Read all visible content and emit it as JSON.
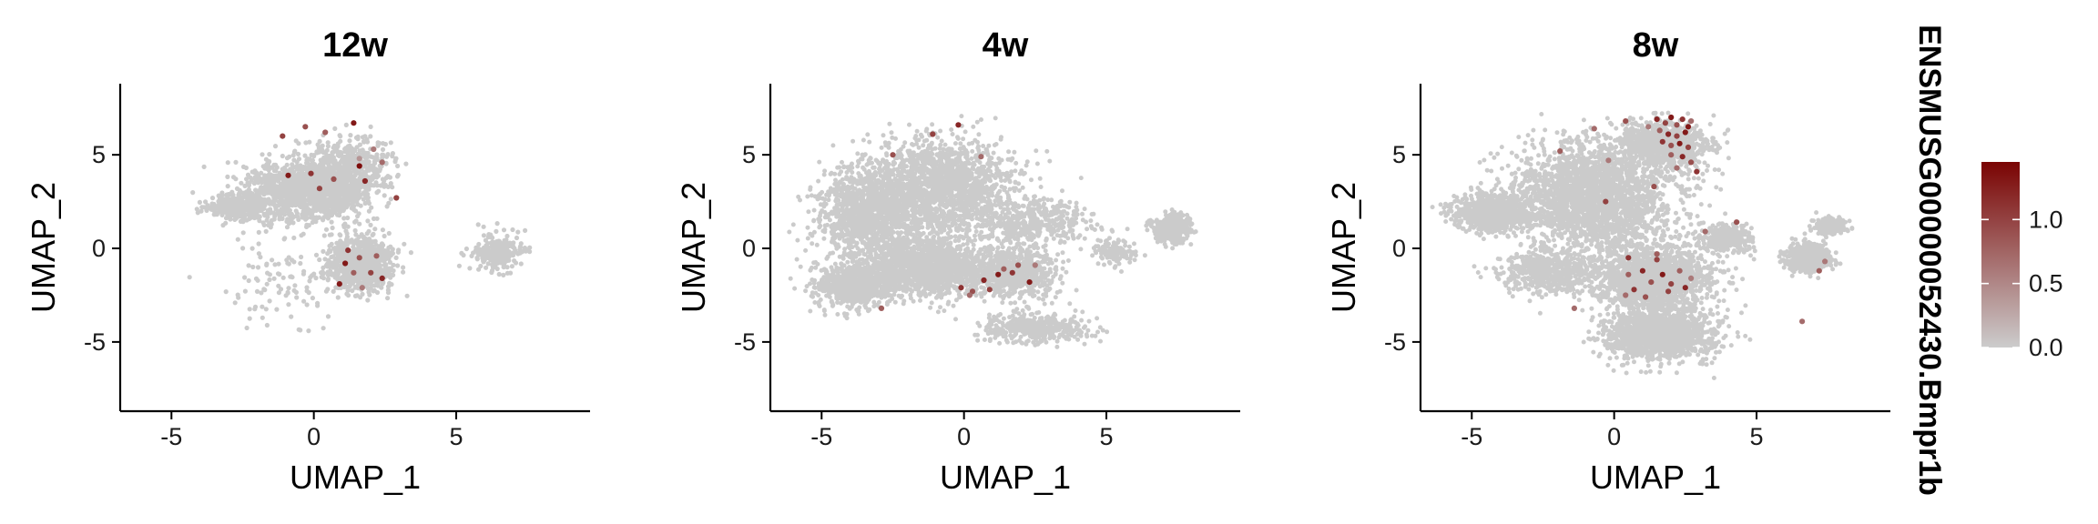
{
  "chart_data": {
    "type": "scatter",
    "panels": [
      {
        "title": "12w",
        "xlabel": "UMAP_1",
        "ylabel": "UMAP_2",
        "xlim": [
          -6.8,
          9.7
        ],
        "ylim": [
          -8.7,
          8.8
        ],
        "xticks": [
          -5,
          0,
          5
        ],
        "xticklabels": [
          "-5",
          "0",
          "5"
        ],
        "yticks": [
          -5,
          0,
          5
        ],
        "yticklabels": [
          "-5",
          "0",
          "5"
        ],
        "expressing_cells": [
          {
            "x": -1.1,
            "y": 6.0,
            "expr": 1.0
          },
          {
            "x": -0.3,
            "y": 6.5,
            "expr": 0.9
          },
          {
            "x": 0.4,
            "y": 6.2,
            "expr": 0.8
          },
          {
            "x": 1.4,
            "y": 6.7,
            "expr": 1.3
          },
          {
            "x": 2.1,
            "y": 5.3,
            "expr": 0.6
          },
          {
            "x": 1.6,
            "y": 4.8,
            "expr": 0.4
          },
          {
            "x": -0.9,
            "y": 3.9,
            "expr": 1.3
          },
          {
            "x": -0.1,
            "y": 4.0,
            "expr": 1.1
          },
          {
            "x": 0.7,
            "y": 3.7,
            "expr": 0.9
          },
          {
            "x": 1.6,
            "y": 4.4,
            "expr": 1.4
          },
          {
            "x": 2.4,
            "y": 4.6,
            "expr": 0.7
          },
          {
            "x": 0.2,
            "y": 3.2,
            "expr": 1.0
          },
          {
            "x": 1.8,
            "y": 3.6,
            "expr": 1.2
          },
          {
            "x": 2.9,
            "y": 2.7,
            "expr": 1.0
          },
          {
            "x": 1.2,
            "y": -0.1,
            "expr": 1.1
          },
          {
            "x": 1.6,
            "y": -0.5,
            "expr": 0.9
          },
          {
            "x": 1.1,
            "y": -0.8,
            "expr": 1.3
          },
          {
            "x": 2.2,
            "y": -0.4,
            "expr": 0.8
          },
          {
            "x": 2.0,
            "y": -1.3,
            "expr": 1.0
          },
          {
            "x": 1.4,
            "y": -1.3,
            "expr": 0.8
          },
          {
            "x": 2.4,
            "y": -1.6,
            "expr": 1.2
          },
          {
            "x": 0.9,
            "y": -1.9,
            "expr": 1.3
          },
          {
            "x": 1.7,
            "y": -2.1,
            "expr": 0.6
          }
        ]
      },
      {
        "title": "4w",
        "xlabel": "UMAP_1",
        "ylabel": "UMAP_2",
        "xlim": [
          -6.8,
          9.7
        ],
        "ylim": [
          -8.7,
          8.8
        ],
        "xticks": [
          -5,
          0,
          5
        ],
        "xticklabels": [
          "-5",
          "0",
          "5"
        ],
        "yticks": [
          -5,
          0,
          5
        ],
        "yticklabels": [
          "-5",
          "0",
          "5"
        ],
        "expressing_cells": [
          {
            "x": -1.1,
            "y": 6.1,
            "expr": 1.0
          },
          {
            "x": -0.2,
            "y": 6.6,
            "expr": 1.2
          },
          {
            "x": -2.5,
            "y": 5.0,
            "expr": 0.9
          },
          {
            "x": 0.6,
            "y": 4.9,
            "expr": 0.7
          },
          {
            "x": -2.9,
            "y": -3.2,
            "expr": 0.8
          },
          {
            "x": -0.1,
            "y": -2.1,
            "expr": 1.1
          },
          {
            "x": 0.3,
            "y": -2.3,
            "expr": 0.9
          },
          {
            "x": 0.7,
            "y": -1.7,
            "expr": 1.2
          },
          {
            "x": 0.9,
            "y": -2.2,
            "expr": 1.0
          },
          {
            "x": 1.2,
            "y": -1.4,
            "expr": 1.3
          },
          {
            "x": 1.4,
            "y": -1.1,
            "expr": 0.8
          },
          {
            "x": 1.7,
            "y": -1.3,
            "expr": 1.1
          },
          {
            "x": 1.9,
            "y": -0.9,
            "expr": 0.9
          },
          {
            "x": 2.3,
            "y": -1.8,
            "expr": 1.3
          },
          {
            "x": 2.5,
            "y": -0.9,
            "expr": 0.6
          },
          {
            "x": 0.2,
            "y": -2.5,
            "expr": 0.7
          }
        ]
      },
      {
        "title": "8w",
        "xlabel": "UMAP_1",
        "ylabel": "UMAP_2",
        "xlim": [
          -6.8,
          9.7
        ],
        "ylim": [
          -8.7,
          8.8
        ],
        "xticks": [
          -5,
          0,
          5
        ],
        "xticklabels": [
          "-5",
          "0",
          "5"
        ],
        "yticks": [
          -5,
          0,
          5
        ],
        "yticklabels": [
          "-5",
          "0",
          "5"
        ],
        "expressing_cells": [
          {
            "x": 1.5,
            "y": 6.9,
            "expr": 1.2
          },
          {
            "x": 1.8,
            "y": 6.7,
            "expr": 1.0
          },
          {
            "x": 2.0,
            "y": 7.0,
            "expr": 1.3
          },
          {
            "x": 2.2,
            "y": 6.6,
            "expr": 0.9
          },
          {
            "x": 2.4,
            "y": 6.9,
            "expr": 1.1
          },
          {
            "x": 2.6,
            "y": 6.5,
            "expr": 1.3
          },
          {
            "x": 1.6,
            "y": 6.3,
            "expr": 0.8
          },
          {
            "x": 1.9,
            "y": 6.1,
            "expr": 1.2
          },
          {
            "x": 2.2,
            "y": 6.0,
            "expr": 1.0
          },
          {
            "x": 2.5,
            "y": 6.2,
            "expr": 1.3
          },
          {
            "x": 2.7,
            "y": 6.8,
            "expr": 0.7
          },
          {
            "x": 1.7,
            "y": 5.7,
            "expr": 1.1
          },
          {
            "x": 2.0,
            "y": 5.5,
            "expr": 0.9
          },
          {
            "x": 2.3,
            "y": 5.6,
            "expr": 1.3
          },
          {
            "x": 2.6,
            "y": 5.4,
            "expr": 1.0
          },
          {
            "x": 2.0,
            "y": 5.0,
            "expr": 0.8
          },
          {
            "x": 2.4,
            "y": 4.9,
            "expr": 1.2
          },
          {
            "x": 2.7,
            "y": 4.6,
            "expr": 0.9
          },
          {
            "x": 2.2,
            "y": 4.3,
            "expr": 0.7
          },
          {
            "x": 2.9,
            "y": 4.1,
            "expr": 1.1
          },
          {
            "x": 1.2,
            "y": 6.5,
            "expr": 0.6
          },
          {
            "x": 0.4,
            "y": 6.8,
            "expr": 0.9
          },
          {
            "x": -0.7,
            "y": 6.4,
            "expr": 0.7
          },
          {
            "x": -1.9,
            "y": 5.2,
            "expr": 0.8
          },
          {
            "x": -0.2,
            "y": 4.7,
            "expr": 0.6
          },
          {
            "x": 1.4,
            "y": 3.3,
            "expr": 0.9
          },
          {
            "x": -0.3,
            "y": 2.5,
            "expr": 1.0
          },
          {
            "x": 3.2,
            "y": 0.9,
            "expr": 0.7
          },
          {
            "x": 4.3,
            "y": 1.4,
            "expr": 0.9
          },
          {
            "x": 0.5,
            "y": -0.5,
            "expr": 1.1
          },
          {
            "x": 1.5,
            "y": -0.6,
            "expr": 1.0
          },
          {
            "x": 0.5,
            "y": -1.4,
            "expr": 0.8
          },
          {
            "x": 1.0,
            "y": -1.2,
            "expr": 1.2
          },
          {
            "x": 1.3,
            "y": -1.8,
            "expr": 0.9
          },
          {
            "x": 1.7,
            "y": -1.4,
            "expr": 1.3
          },
          {
            "x": 2.0,
            "y": -1.9,
            "expr": 1.0
          },
          {
            "x": 2.3,
            "y": -1.2,
            "expr": 0.8
          },
          {
            "x": 2.5,
            "y": -2.1,
            "expr": 1.2
          },
          {
            "x": 0.7,
            "y": -2.2,
            "expr": 1.1
          },
          {
            "x": 0.4,
            "y": -2.5,
            "expr": 0.7
          },
          {
            "x": 1.1,
            "y": -2.6,
            "expr": 0.9
          },
          {
            "x": 1.9,
            "y": -2.3,
            "expr": 1.0
          },
          {
            "x": 2.7,
            "y": -1.6,
            "expr": 0.6
          },
          {
            "x": 1.5,
            "y": -0.3,
            "expr": 0.8
          },
          {
            "x": -1.4,
            "y": -3.2,
            "expr": 0.7
          },
          {
            "x": 7.2,
            "y": -1.2,
            "expr": 0.8
          },
          {
            "x": 7.4,
            "y": -0.7,
            "expr": 0.6
          },
          {
            "x": 6.6,
            "y": -3.9,
            "expr": 0.7
          }
        ]
      }
    ],
    "legend": {
      "title": "ENSMUSG00000052430.Bmpr1b",
      "placement": "right",
      "colorbar_range": [
        0,
        1.45
      ],
      "ticks": [
        0.0,
        0.5,
        1.0
      ],
      "ticklabels": [
        "0.0",
        "0.5",
        "1.0"
      ],
      "color_low": "#cccccc",
      "color_high": "#7a0403"
    },
    "background_cell_color": "#cbcbcb"
  }
}
